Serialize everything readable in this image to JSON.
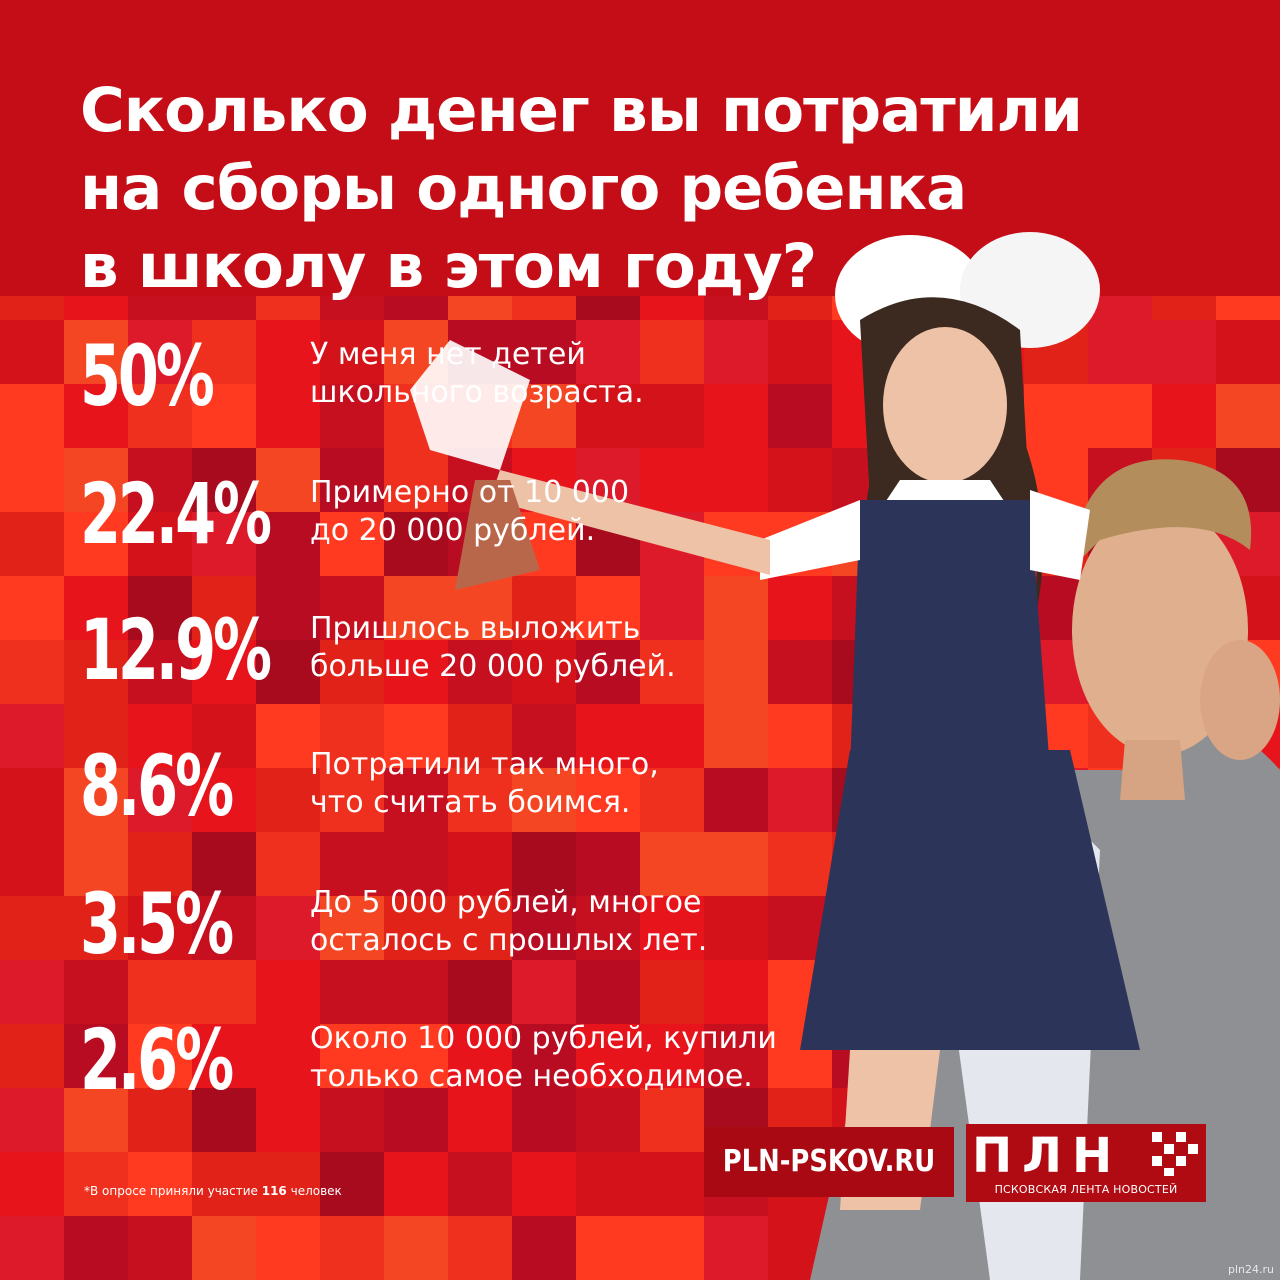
{
  "title_lines": [
    "Сколько денег вы потратили",
    "на сборы одного ребенка",
    "в школу в этом году?"
  ],
  "chart_data": {
    "type": "table",
    "title": "Сколько денег вы потратили на сборы одного ребенка в школу в этом году?",
    "rows": [
      {
        "value": 50,
        "label": "50%",
        "lines": [
          "У меня нет детей",
          "школьного возраста."
        ]
      },
      {
        "value": 22.4,
        "label": "22.4%",
        "lines": [
          "Примерно от 10 000",
          "до 20 000 рублей."
        ]
      },
      {
        "value": 12.9,
        "label": "12.9%",
        "lines": [
          "Пришлось выложить",
          "больше 20 000 рублей."
        ]
      },
      {
        "value": 8.6,
        "label": "8.6%",
        "lines": [
          "Потратили так много,",
          "что считать боимся."
        ]
      },
      {
        "value": 3.5,
        "label": "3.5%",
        "lines": [
          "До 5 000 рублей, многое",
          "осталось с прошлых лет."
        ]
      },
      {
        "value": 2.6,
        "label": "2.6%",
        "lines": [
          "Около 10 000 рублей, купили",
          "только самое необходимое."
        ]
      }
    ]
  },
  "footer": {
    "site": "PLN-PSKOV.RU",
    "logo_letters": "ПЛН",
    "logo_caption": "ПСКОВСКАЯ ЛЕНТА НОВОСТЕЙ",
    "note_prefix": "*В опросе приняли участие ",
    "note_count": "116",
    "note_suffix": " человек",
    "watermark": "pln24.ru"
  },
  "colors": {
    "accent": "#c40d16",
    "text": "#ffffff",
    "dark": "#a90912"
  }
}
